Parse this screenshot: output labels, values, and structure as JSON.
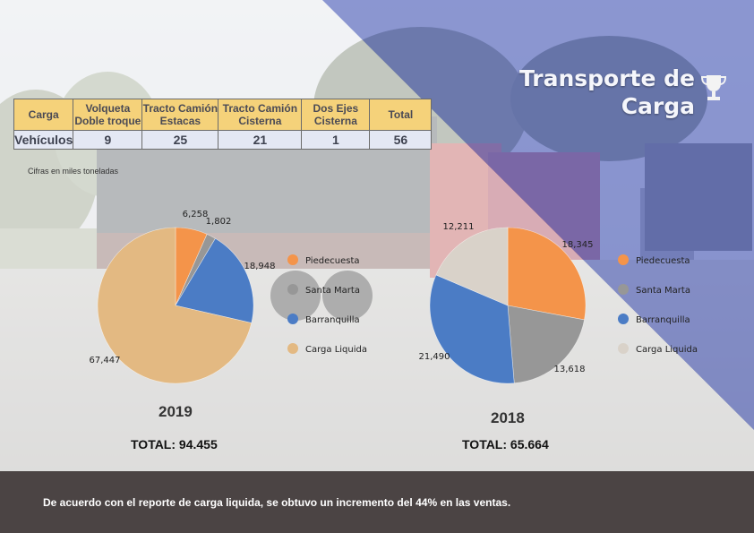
{
  "title": {
    "line1": "Transporte de",
    "line2": "Carga"
  },
  "table": {
    "headers": [
      "Carga",
      "Volqueta Doble troque",
      "Tracto Camión Estacas",
      "Tracto Camión Cisterna",
      "Dos Ejes Cisterna",
      "Total"
    ],
    "header_lines": [
      [
        "Carga"
      ],
      [
        "Volqueta",
        "Doble troque"
      ],
      [
        "Tracto Camión",
        "Estacas"
      ],
      [
        "Tracto Camión",
        "Cisterna"
      ],
      [
        "Dos Ejes",
        "Cisterna"
      ],
      [
        "Total"
      ]
    ],
    "row": [
      "Vehículos",
      "9",
      "25",
      "21",
      "1",
      "56"
    ]
  },
  "note": "Cifras en miles toneladas",
  "colors": {
    "Piedecuesta": "#f4944a",
    "Santa Marta": "#979797",
    "Barranquilla": "#4b7cc5",
    "Carga Liquida_2019": "#e3b982",
    "Carga Liquida_2018": "#d9d2c9",
    "band": "#6b78c8"
  },
  "chart_data": [
    {
      "type": "pie",
      "title": "2019",
      "categories": [
        "Piedecuesta",
        "Santa Marta",
        "Barranquilla",
        "Carga Liquida"
      ],
      "values": [
        6258,
        1802,
        18948,
        67447
      ],
      "labels": [
        "6,258",
        "1,802",
        "18,948",
        "67,447"
      ],
      "total_label": "TOTAL: 94.455",
      "legend": "right"
    },
    {
      "type": "pie",
      "title": "2018",
      "categories": [
        "Piedecuesta",
        "Santa Marta",
        "Barranquilla",
        "Carga Liquida"
      ],
      "values": [
        18345,
        13618,
        21490,
        12211
      ],
      "labels": [
        "18,345",
        "13,618",
        "21,490",
        "12,211"
      ],
      "total_label": "TOTAL: 65.664",
      "legend": "right"
    }
  ],
  "footer": "De acuerdo con el reporte de carga liquida, se obtuvo un incremento del 44% en las ventas."
}
